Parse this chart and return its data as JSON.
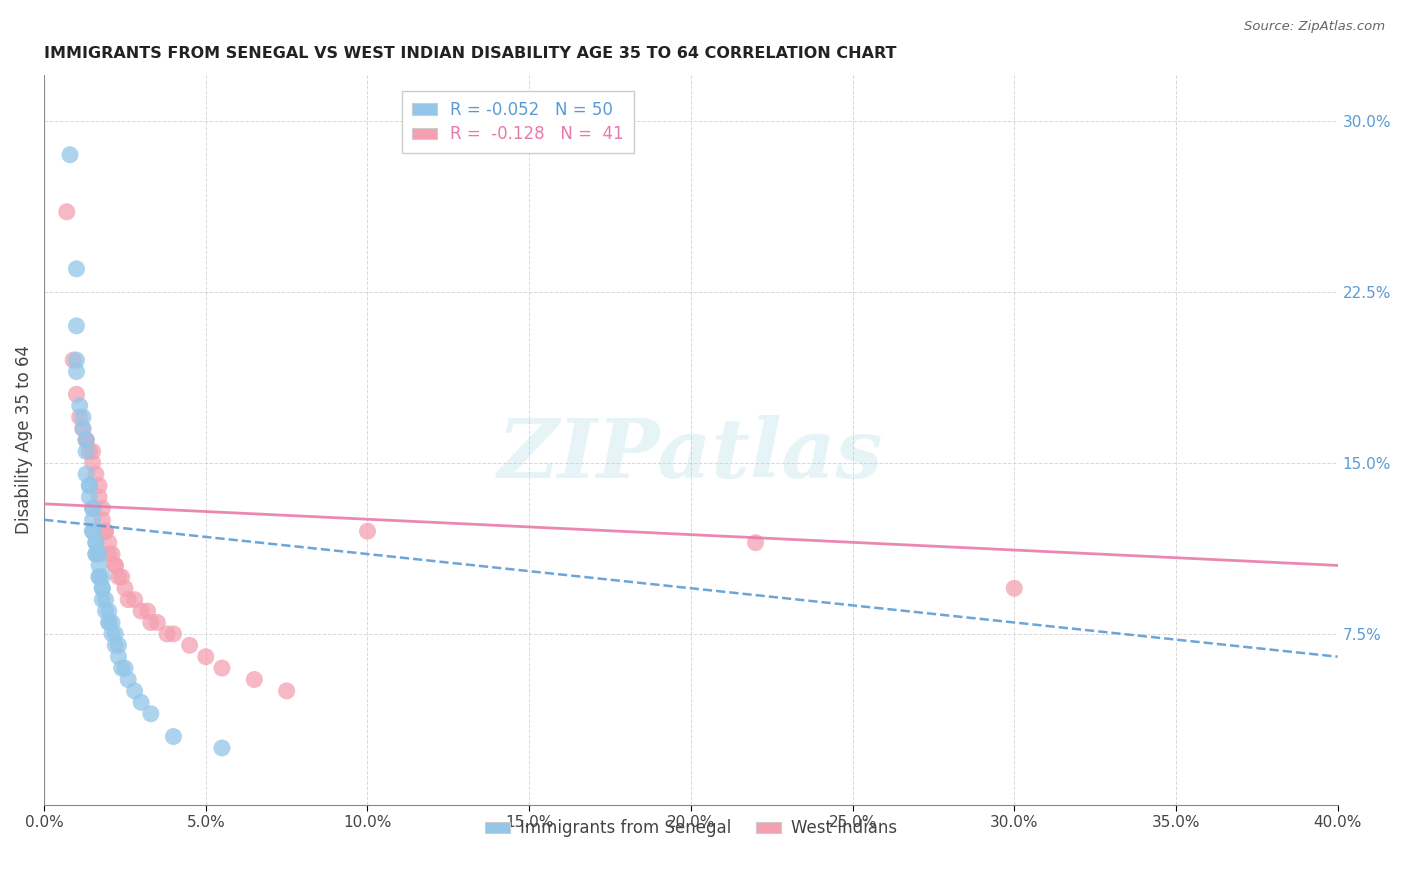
{
  "title": "IMMIGRANTS FROM SENEGAL VS WEST INDIAN DISABILITY AGE 35 TO 64 CORRELATION CHART",
  "source": "Source: ZipAtlas.com",
  "ylabel": "Disability Age 35 to 64",
  "xlim": [
    0.0,
    0.4
  ],
  "ylim": [
    0.0,
    0.32
  ],
  "xticks": [
    0.0,
    0.05,
    0.1,
    0.15,
    0.2,
    0.25,
    0.3,
    0.35,
    0.4
  ],
  "yticks": [
    0.0,
    0.075,
    0.15,
    0.225,
    0.3
  ],
  "senegal_R": -0.052,
  "senegal_N": 50,
  "westindian_R": -0.128,
  "westindian_N": 41,
  "senegal_color": "#93c6e8",
  "westindian_color": "#f4a0b0",
  "senegal_line_color": "#5b9bd5",
  "westindian_line_color": "#e87aaa",
  "background_color": "#ffffff",
  "grid_color": "#d0d0d0",
  "watermark_text": "ZIPatlas",
  "legend_bottom_senegal": "Immigrants from Senegal",
  "legend_bottom_westindian": "West Indians",
  "senegal_x": [
    0.008,
    0.01,
    0.01,
    0.01,
    0.01,
    0.011,
    0.012,
    0.012,
    0.013,
    0.013,
    0.013,
    0.014,
    0.014,
    0.014,
    0.015,
    0.015,
    0.015,
    0.015,
    0.015,
    0.016,
    0.016,
    0.016,
    0.016,
    0.017,
    0.017,
    0.017,
    0.017,
    0.018,
    0.018,
    0.018,
    0.018,
    0.019,
    0.019,
    0.02,
    0.02,
    0.02,
    0.021,
    0.021,
    0.022,
    0.022,
    0.023,
    0.023,
    0.024,
    0.025,
    0.026,
    0.028,
    0.03,
    0.033,
    0.04,
    0.055
  ],
  "senegal_y": [
    0.285,
    0.235,
    0.21,
    0.195,
    0.19,
    0.175,
    0.17,
    0.165,
    0.16,
    0.155,
    0.145,
    0.14,
    0.14,
    0.135,
    0.13,
    0.13,
    0.125,
    0.12,
    0.12,
    0.115,
    0.115,
    0.11,
    0.11,
    0.11,
    0.105,
    0.1,
    0.1,
    0.1,
    0.095,
    0.095,
    0.09,
    0.09,
    0.085,
    0.085,
    0.08,
    0.08,
    0.08,
    0.075,
    0.075,
    0.07,
    0.07,
    0.065,
    0.06,
    0.06,
    0.055,
    0.05,
    0.045,
    0.04,
    0.03,
    0.025
  ],
  "westindian_x": [
    0.007,
    0.009,
    0.01,
    0.011,
    0.012,
    0.013,
    0.013,
    0.014,
    0.015,
    0.015,
    0.016,
    0.017,
    0.017,
    0.018,
    0.018,
    0.019,
    0.019,
    0.02,
    0.02,
    0.021,
    0.022,
    0.022,
    0.023,
    0.024,
    0.025,
    0.026,
    0.028,
    0.03,
    0.032,
    0.033,
    0.035,
    0.038,
    0.04,
    0.045,
    0.05,
    0.055,
    0.065,
    0.075,
    0.1,
    0.22,
    0.3
  ],
  "westindian_y": [
    0.26,
    0.195,
    0.18,
    0.17,
    0.165,
    0.16,
    0.16,
    0.155,
    0.155,
    0.15,
    0.145,
    0.14,
    0.135,
    0.13,
    0.125,
    0.12,
    0.12,
    0.115,
    0.11,
    0.11,
    0.105,
    0.105,
    0.1,
    0.1,
    0.095,
    0.09,
    0.09,
    0.085,
    0.085,
    0.08,
    0.08,
    0.075,
    0.075,
    0.07,
    0.065,
    0.06,
    0.055,
    0.05,
    0.12,
    0.115,
    0.095
  ],
  "trendline_x_start": 0.0,
  "trendline_x_end": 0.4,
  "senegal_trend_y_start": 0.125,
  "senegal_trend_y_end": 0.065,
  "westindian_trend_y_start": 0.132,
  "westindian_trend_y_end": 0.105
}
